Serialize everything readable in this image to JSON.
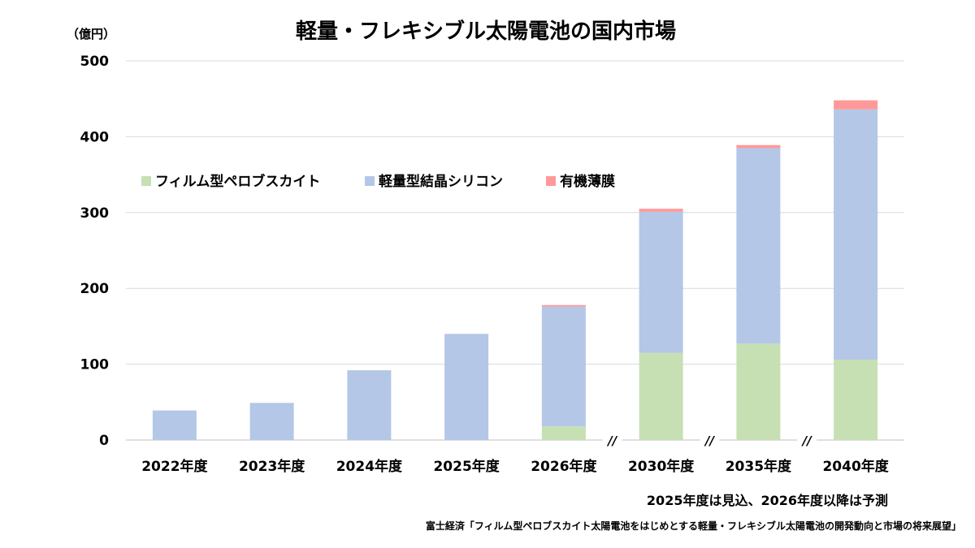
{
  "chart_data": {
    "type": "bar",
    "stacked": true,
    "title": "軽量・フレキシブル太陽電池の国内市場",
    "unit_label": "（億円）",
    "categories": [
      "2022年度",
      "2023年度",
      "2024年度",
      "2025年度",
      "2026年度",
      "2030年度",
      "2035年度",
      "2040年度"
    ],
    "series": [
      {
        "name": "フィルム型ペロブスカイト",
        "color": "#c6e0b4",
        "values": [
          0,
          0,
          0,
          0,
          18,
          115,
          127,
          106
        ]
      },
      {
        "name": "軽量型結晶シリコン",
        "color": "#b4c7e7",
        "values": [
          39,
          49,
          92,
          140,
          158,
          186,
          258,
          330
        ]
      },
      {
        "name": "有機薄膜",
        "color": "#ff9999",
        "values": [
          0,
          0,
          0,
          0,
          2,
          4,
          4,
          12
        ]
      }
    ],
    "ylim": [
      0,
      500
    ],
    "yticks": [
      0,
      100,
      200,
      300,
      400,
      500
    ],
    "grid": true,
    "legend_position": "top-left",
    "axis_breaks_after": [
      "2026年度",
      "2030年度",
      "2035年度"
    ],
    "break_mark": "//",
    "note": "2025年度は見込、2026年度以降は予測",
    "source": "富士経済「フィルム型ペロブスカイト太陽電池をはじめとする軽量・フレキシブル太陽電池の開発動向と市場の将来展望」"
  }
}
